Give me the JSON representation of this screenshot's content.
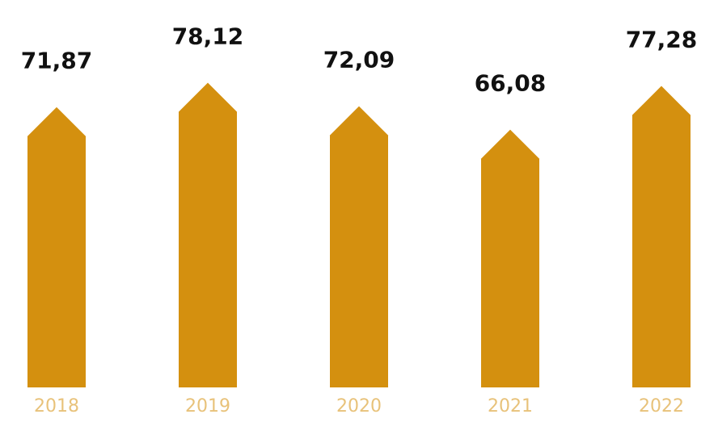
{
  "colors": {
    "bar": "#d4900f",
    "value_text": "#111111",
    "tick_text": "#e8c27a",
    "background": "#ffffff"
  },
  "chart_data": {
    "type": "bar",
    "bar_shape": "arrow-up",
    "categories": [
      "2018",
      "2019",
      "2020",
      "2021",
      "2022"
    ],
    "values": [
      71.87,
      78.12,
      72.09,
      66.08,
      77.28
    ],
    "value_labels": [
      "71,87",
      "78,12",
      "72,09",
      "66,08",
      "77,28"
    ],
    "title": "",
    "xlabel": "",
    "ylabel": "",
    "ylim": [
      0,
      80
    ],
    "grid": false,
    "legend": "none"
  }
}
